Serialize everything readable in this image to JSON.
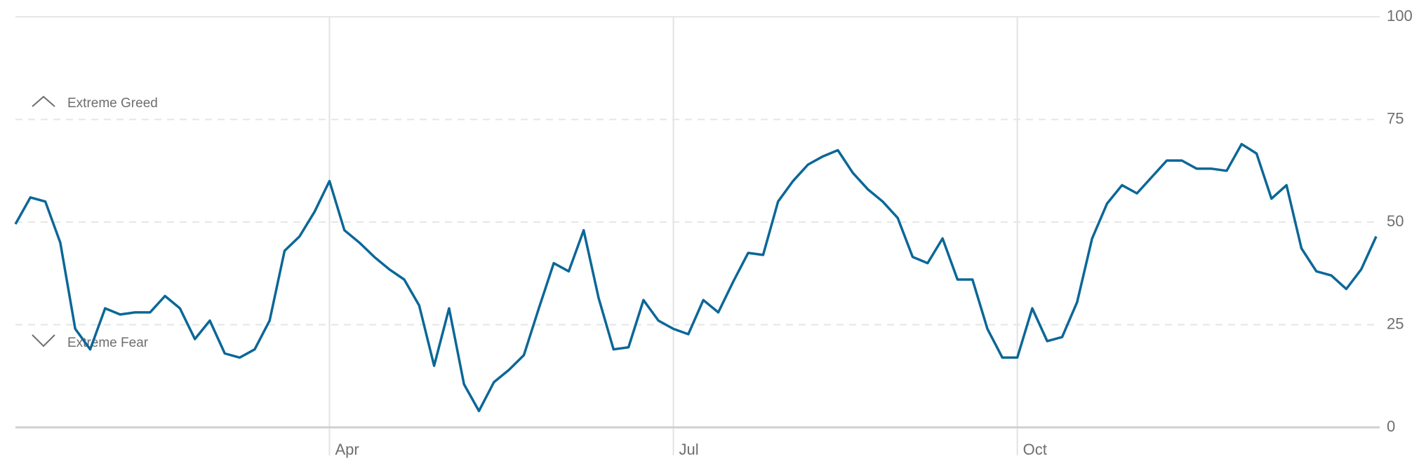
{
  "chart_data": {
    "type": "line",
    "annotations": [
      "Extreme Greed",
      "Extreme Fear"
    ],
    "categories": [
      null,
      null,
      null,
      null,
      null,
      null,
      null,
      null,
      null,
      null,
      null,
      null,
      null,
      null,
      null,
      null,
      null,
      null,
      null,
      null,
      null,
      "Apr",
      null,
      null,
      null,
      null,
      null,
      null,
      null,
      null,
      null,
      null,
      null,
      null,
      null,
      null,
      null,
      null,
      null,
      null,
      null,
      null,
      null,
      null,
      "Jul",
      null,
      null,
      null,
      null,
      null,
      null,
      null,
      null,
      null,
      null,
      null,
      null,
      null,
      null,
      null,
      null,
      null,
      null,
      null,
      null,
      null,
      null,
      "Oct",
      null,
      null,
      null,
      null,
      null,
      null,
      null,
      null,
      null,
      null,
      null,
      null,
      null,
      null,
      null,
      null,
      null,
      null,
      null,
      null,
      null,
      null,
      null,
      null
    ],
    "values": [
      49.5,
      56,
      55,
      45,
      24,
      19,
      29,
      27.5,
      28,
      28,
      32,
      29,
      21.5,
      26,
      18,
      17,
      19,
      26,
      43,
      46.5,
      52.5,
      60,
      48,
      45,
      41.5,
      38.5,
      36,
      29.7,
      15,
      29,
      10.5,
      4,
      11,
      14,
      17.6,
      29,
      40,
      38,
      48,
      31.5,
      19,
      19.5,
      31,
      26,
      24,
      22.7,
      31,
      28,
      35.5,
      42.5,
      42,
      55,
      60,
      64,
      66,
      67.5,
      62,
      58,
      55,
      51,
      41.5,
      40,
      46,
      36,
      36,
      24,
      17,
      17,
      29,
      21,
      22,
      30.5,
      46,
      54.5,
      59,
      57,
      61,
      65,
      65,
      63,
      63,
      62.5,
      69,
      66.7,
      55.7,
      59,
      43.6,
      38,
      37,
      33.7,
      38.5,
      46.5
    ],
    "color": "#0b6797",
    "ylim": [
      0,
      100
    ],
    "yticks": [
      0,
      25,
      50,
      75,
      100
    ],
    "grid": true
  }
}
